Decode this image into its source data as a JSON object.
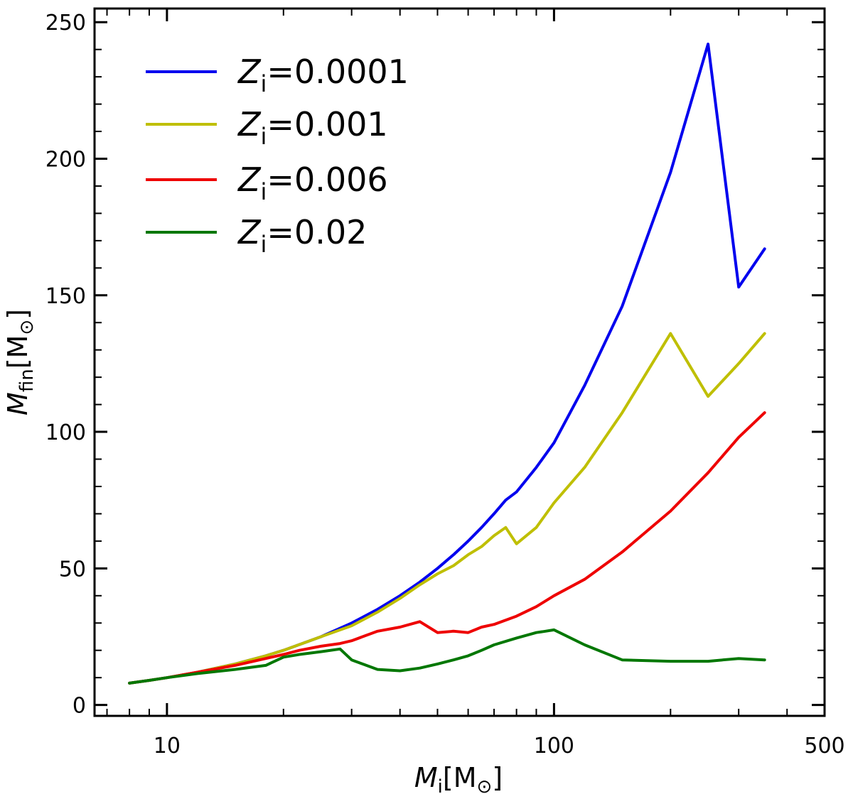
{
  "chart_data": {
    "type": "line",
    "title": "",
    "xlabel": {
      "var": "M",
      "sub": "i",
      "unit": "[M",
      "unit_sub": "⊙",
      "close": "]"
    },
    "ylabel": {
      "var": "M",
      "sub": "fin",
      "unit": "[M",
      "unit_sub": "⊙",
      "close": "]"
    },
    "xscale": "log",
    "xlim": [
      6.5,
      500
    ],
    "ylim": [
      -4,
      255
    ],
    "x_ticks": [
      {
        "value": 10,
        "label": "10"
      },
      {
        "value": 100,
        "label": "100"
      },
      {
        "value": 500,
        "label": "500"
      }
    ],
    "y_ticks": [
      {
        "value": 0,
        "label": "0"
      },
      {
        "value": 50,
        "label": "50"
      },
      {
        "value": 100,
        "label": "100"
      },
      {
        "value": 150,
        "label": "150"
      },
      {
        "value": 200,
        "label": "200"
      },
      {
        "value": 250,
        "label": "250"
      }
    ],
    "legend_placement": "top-left",
    "series": [
      {
        "name": "Z_i=0.0001",
        "label_var": "Z",
        "label_sub": "i",
        "label_value": "=0.0001",
        "color": "#0000ee",
        "points": [
          [
            8,
            8
          ],
          [
            9,
            9
          ],
          [
            10,
            10
          ],
          [
            12,
            12
          ],
          [
            15,
            15
          ],
          [
            18,
            18
          ],
          [
            20,
            20
          ],
          [
            25,
            25
          ],
          [
            30,
            30
          ],
          [
            35,
            35
          ],
          [
            40,
            40
          ],
          [
            45,
            45
          ],
          [
            50,
            50
          ],
          [
            55,
            55
          ],
          [
            60,
            60
          ],
          [
            65,
            65
          ],
          [
            70,
            70
          ],
          [
            75,
            75
          ],
          [
            80,
            78
          ],
          [
            90,
            87
          ],
          [
            100,
            96
          ],
          [
            120,
            117
          ],
          [
            150,
            146
          ],
          [
            200,
            195
          ],
          [
            250,
            242
          ],
          [
            300,
            153
          ],
          [
            350,
            167
          ]
        ]
      },
      {
        "name": "Z_i=0.001",
        "label_var": "Z",
        "label_sub": "i",
        "label_value": "=0.001",
        "color": "#bfbf00",
        "points": [
          [
            8,
            8
          ],
          [
            9,
            9
          ],
          [
            10,
            10
          ],
          [
            12,
            12
          ],
          [
            15,
            15
          ],
          [
            18,
            18
          ],
          [
            20,
            20
          ],
          [
            25,
            25
          ],
          [
            30,
            29
          ],
          [
            35,
            34
          ],
          [
            40,
            39
          ],
          [
            45,
            44
          ],
          [
            50,
            48
          ],
          [
            55,
            51
          ],
          [
            60,
            55
          ],
          [
            65,
            58
          ],
          [
            70,
            62
          ],
          [
            75,
            65
          ],
          [
            80,
            59
          ],
          [
            90,
            65
          ],
          [
            100,
            74
          ],
          [
            120,
            87
          ],
          [
            150,
            107
          ],
          [
            200,
            136
          ],
          [
            250,
            113
          ],
          [
            300,
            125
          ],
          [
            350,
            136
          ]
        ]
      },
      {
        "name": "Z_i=0.006",
        "label_var": "Z",
        "label_sub": "i",
        "label_value": "=0.006",
        "color": "#ee0000",
        "points": [
          [
            8,
            8
          ],
          [
            9,
            9
          ],
          [
            10,
            10
          ],
          [
            12,
            12
          ],
          [
            15,
            14.5
          ],
          [
            18,
            17
          ],
          [
            20,
            18.5
          ],
          [
            22,
            20
          ],
          [
            25,
            21.5
          ],
          [
            28,
            22.5
          ],
          [
            30,
            23.5
          ],
          [
            35,
            27
          ],
          [
            40,
            28.5
          ],
          [
            45,
            30.5
          ],
          [
            50,
            26.5
          ],
          [
            55,
            27
          ],
          [
            60,
            26.5
          ],
          [
            65,
            28.5
          ],
          [
            70,
            29.5
          ],
          [
            80,
            32.5
          ],
          [
            90,
            36
          ],
          [
            100,
            40
          ],
          [
            120,
            46
          ],
          [
            150,
            56
          ],
          [
            200,
            71
          ],
          [
            250,
            85
          ],
          [
            300,
            98
          ],
          [
            350,
            107
          ]
        ]
      },
      {
        "name": "Z_i=0.02",
        "label_var": "Z",
        "label_sub": "i",
        "label_value": "=0.02",
        "color": "#007700",
        "points": [
          [
            8,
            8
          ],
          [
            9,
            9
          ],
          [
            10,
            10
          ],
          [
            12,
            11.5
          ],
          [
            15,
            13
          ],
          [
            18,
            14.5
          ],
          [
            20,
            17.5
          ],
          [
            22,
            18.5
          ],
          [
            25,
            19.5
          ],
          [
            28,
            20.5
          ],
          [
            30,
            16.5
          ],
          [
            35,
            13
          ],
          [
            40,
            12.5
          ],
          [
            45,
            13.5
          ],
          [
            50,
            15
          ],
          [
            55,
            16.5
          ],
          [
            60,
            18
          ],
          [
            65,
            20
          ],
          [
            70,
            22
          ],
          [
            80,
            24.5
          ],
          [
            90,
            26.5
          ],
          [
            95,
            27
          ],
          [
            100,
            27.5
          ],
          [
            120,
            22
          ],
          [
            150,
            16.5
          ],
          [
            200,
            16
          ],
          [
            250,
            16
          ],
          [
            300,
            17
          ],
          [
            350,
            16.5
          ]
        ]
      }
    ]
  }
}
